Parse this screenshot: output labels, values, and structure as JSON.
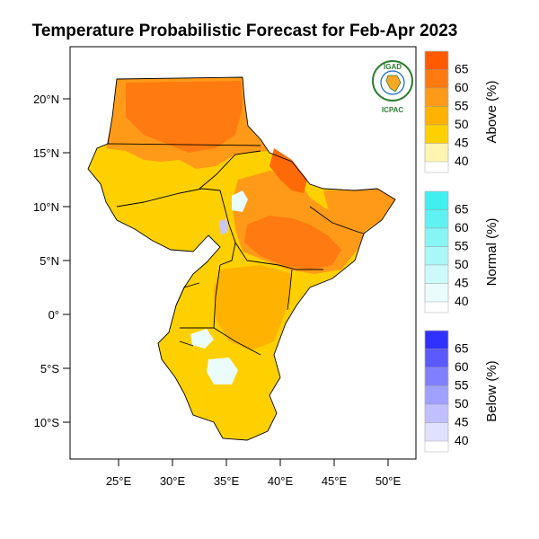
{
  "title": "Temperature Probabilistic Forecast for Feb-Apr 2023",
  "axes": {
    "lat_ticks": [
      "20°N",
      "15°N",
      "10°N",
      "5°N",
      "0°",
      "5°S",
      "10°S"
    ],
    "lon_ticks": [
      "25°E",
      "30°E",
      "35°E",
      "40°E",
      "45°E",
      "50°E"
    ]
  },
  "logo": {
    "top_text": "IGAD",
    "bottom_text": "ICPAC"
  },
  "colorbars": [
    {
      "title": "Above (%)",
      "levels": [
        "65",
        "60",
        "55",
        "50",
        "45",
        "40"
      ],
      "colors": [
        "#ff5a00",
        "#ff7a10",
        "#ff9a18",
        "#ffb300",
        "#ffd000",
        "#fff4b0"
      ]
    },
    {
      "title": "Normal (%)",
      "levels": [
        "65",
        "60",
        "55",
        "50",
        "45",
        "40"
      ],
      "colors": [
        "#40f0f0",
        "#60f2f2",
        "#88f5f5",
        "#aaf7f7",
        "#ccfafa",
        "#eafcfc"
      ]
    },
    {
      "title": "Below (%)",
      "levels": [
        "65",
        "60",
        "55",
        "50",
        "45",
        "40"
      ],
      "colors": [
        "#3030ff",
        "#5a5aff",
        "#8080ff",
        "#a0a0ff",
        "#c0c0ff",
        "#e0e0ff"
      ]
    }
  ]
}
